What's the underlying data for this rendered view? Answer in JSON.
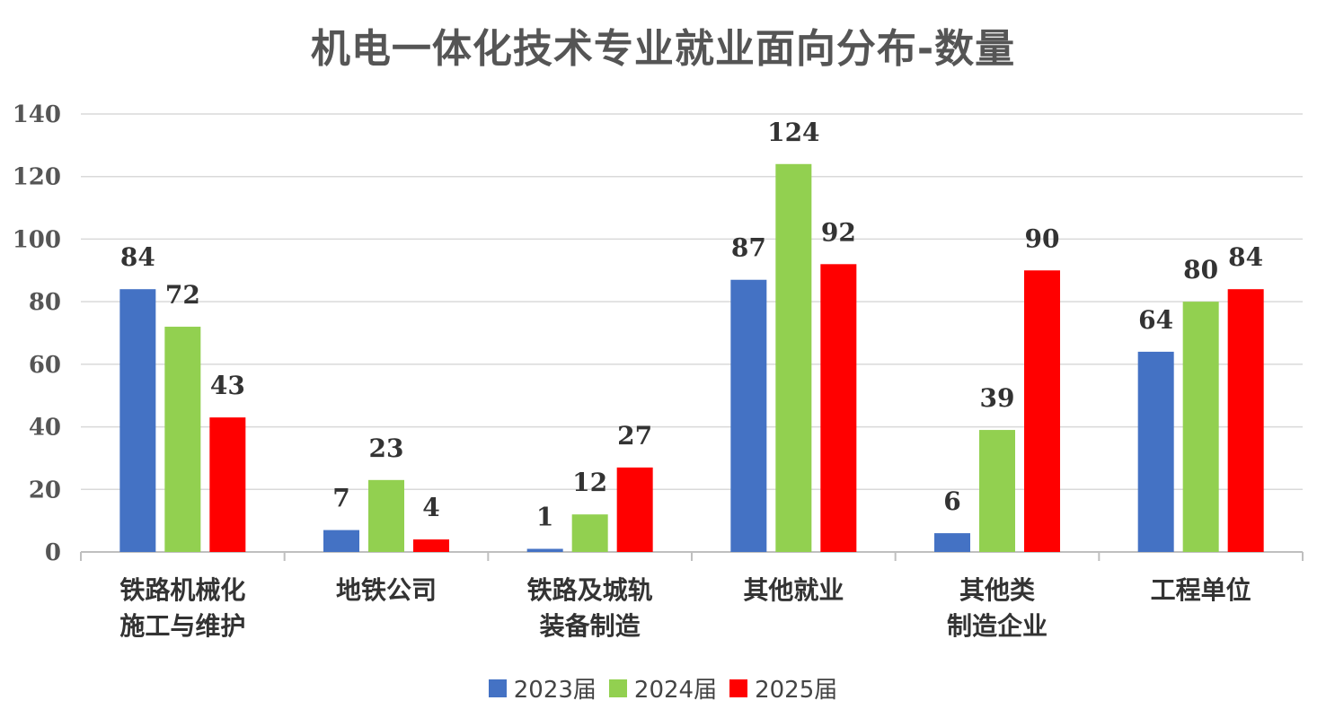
{
  "chart_data": {
    "type": "bar",
    "title": "机电一体化技术专业就业面向分布-数量",
    "xlabel": "",
    "ylabel": "",
    "ylim": [
      0,
      140
    ],
    "yticks": [
      0,
      20,
      40,
      60,
      80,
      100,
      120,
      140
    ],
    "grid": true,
    "legend_position": "bottom",
    "categories": [
      [
        "铁路机械化",
        "施工与维护"
      ],
      [
        "地铁公司"
      ],
      [
        "铁路及城轨",
        "装备制造"
      ],
      [
        "其他就业"
      ],
      [
        "其他类",
        "制造企业"
      ],
      [
        "工程单位"
      ]
    ],
    "series": [
      {
        "name": "2023届",
        "color": "#4472C4",
        "values": [
          84,
          7,
          1,
          87,
          6,
          64
        ]
      },
      {
        "name": "2024届",
        "color": "#92D050",
        "values": [
          72,
          23,
          12,
          124,
          39,
          80
        ]
      },
      {
        "name": "2025届",
        "color": "#FF0000",
        "values": [
          43,
          4,
          27,
          92,
          90,
          84
        ]
      }
    ]
  }
}
